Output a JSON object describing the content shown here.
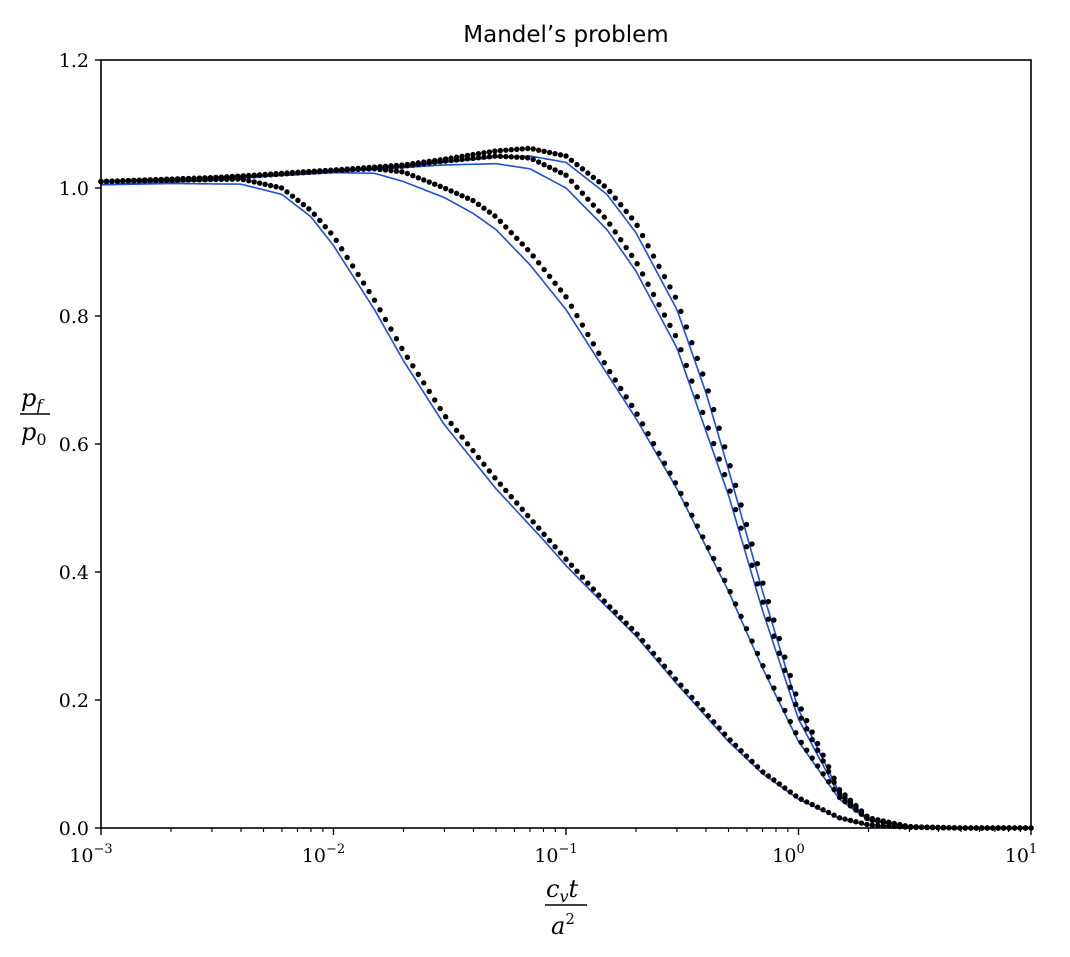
{
  "chart_data": {
    "type": "line",
    "title": "Mandel’s problem",
    "xlabel": {
      "num_base": "c",
      "num_sub": "v",
      "num_tail": "t",
      "den_base": "a",
      "den_sup": "2"
    },
    "ylabel": {
      "num_base": "p",
      "num_sub": "f",
      "den_base": "p",
      "den_sub": "0"
    },
    "xscale": "log",
    "xlim": [
      0.001,
      10
    ],
    "ylim": [
      0.0,
      1.2
    ],
    "grid": false,
    "xticks": [
      {
        "base": "10",
        "exp": "−3",
        "value": 0.001
      },
      {
        "base": "10",
        "exp": "−2",
        "value": 0.01
      },
      {
        "base": "10",
        "exp": "−1",
        "value": 0.1
      },
      {
        "base": "10",
        "exp": "0",
        "value": 1
      },
      {
        "base": "10",
        "exp": "1",
        "value": 10
      }
    ],
    "yticks": [
      "0.0",
      "0.2",
      "0.4",
      "0.6",
      "0.8",
      "1.0",
      "1.2"
    ],
    "colors": {
      "analytical": "#1f4fd6",
      "numerical": "#000000"
    },
    "series": [
      {
        "x": [
          0.001,
          0.002,
          0.004,
          0.006,
          0.008,
          0.01,
          0.015,
          0.02,
          0.03,
          0.05,
          0.08,
          0.1,
          0.15,
          0.2,
          0.3,
          0.5,
          0.7,
          1.0,
          1.5,
          2.0,
          3.0,
          5.0,
          10.0
        ],
        "analytical": [
          1.005,
          1.007,
          1.006,
          0.99,
          0.955,
          0.91,
          0.81,
          0.73,
          0.63,
          0.53,
          0.45,
          0.41,
          0.345,
          0.3,
          0.225,
          0.135,
          0.085,
          0.045,
          0.015,
          0.004,
          0.0005,
          0.0,
          0.0
        ],
        "numerical": [
          1.01,
          1.012,
          1.014,
          1.0,
          0.965,
          0.925,
          0.825,
          0.745,
          0.645,
          0.545,
          0.46,
          0.42,
          0.35,
          0.305,
          0.23,
          0.14,
          0.088,
          0.047,
          0.016,
          0.005,
          0.001,
          0.0,
          0.0
        ]
      },
      {
        "x": [
          0.001,
          0.003,
          0.005,
          0.008,
          0.01,
          0.015,
          0.02,
          0.03,
          0.04,
          0.05,
          0.07,
          0.1,
          0.15,
          0.2,
          0.3,
          0.5,
          0.7,
          1.0,
          1.5,
          2.0,
          3.0,
          5.0,
          10.0
        ],
        "analytical": [
          1.005,
          1.012,
          1.018,
          1.022,
          1.024,
          1.023,
          1.01,
          0.985,
          0.96,
          0.935,
          0.88,
          0.81,
          0.71,
          0.64,
          0.53,
          0.37,
          0.25,
          0.135,
          0.045,
          0.012,
          0.002,
          0.0,
          0.0
        ],
        "numerical": [
          1.01,
          1.016,
          1.021,
          1.026,
          1.028,
          1.03,
          1.025,
          1.0,
          0.98,
          0.955,
          0.9,
          0.83,
          0.72,
          0.65,
          0.535,
          0.375,
          0.255,
          0.14,
          0.048,
          0.013,
          0.002,
          0.0,
          0.0
        ]
      },
      {
        "x": [
          0.001,
          0.003,
          0.005,
          0.01,
          0.02,
          0.03,
          0.05,
          0.07,
          0.1,
          0.15,
          0.2,
          0.3,
          0.4,
          0.5,
          0.7,
          1.0,
          1.5,
          2.0,
          3.0,
          5.0,
          10.0
        ],
        "analytical": [
          1.005,
          1.012,
          1.018,
          1.025,
          1.032,
          1.036,
          1.038,
          1.03,
          1.0,
          0.935,
          0.87,
          0.75,
          0.62,
          0.52,
          0.34,
          0.17,
          0.05,
          0.012,
          0.002,
          0.0,
          0.0
        ],
        "numerical": [
          1.01,
          1.016,
          1.02,
          1.027,
          1.034,
          1.042,
          1.05,
          1.047,
          1.02,
          0.95,
          0.885,
          0.765,
          0.635,
          0.535,
          0.355,
          0.18,
          0.055,
          0.014,
          0.002,
          0.0,
          0.0
        ]
      },
      {
        "x": [
          0.001,
          0.003,
          0.005,
          0.01,
          0.02,
          0.03,
          0.05,
          0.07,
          0.1,
          0.15,
          0.2,
          0.3,
          0.4,
          0.5,
          0.7,
          1.0,
          1.5,
          2.0,
          3.0,
          5.0,
          10.0
        ],
        "analytical": [
          1.005,
          1.012,
          1.018,
          1.026,
          1.034,
          1.04,
          1.048,
          1.05,
          1.04,
          0.99,
          0.93,
          0.81,
          0.68,
          0.56,
          0.37,
          0.185,
          0.055,
          0.014,
          0.002,
          0.0,
          0.0
        ],
        "numerical": [
          1.01,
          1.016,
          1.02,
          1.028,
          1.036,
          1.045,
          1.058,
          1.062,
          1.05,
          1.0,
          0.945,
          0.825,
          0.695,
          0.575,
          0.385,
          0.195,
          0.06,
          0.016,
          0.002,
          0.0,
          0.0
        ]
      }
    ]
  }
}
